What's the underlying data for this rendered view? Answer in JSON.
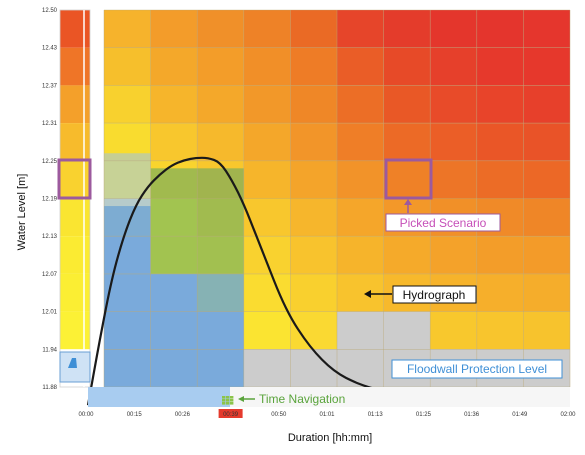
{
  "chart_data": {
    "type": "heatmap",
    "title": "",
    "xlabel": "Duration [hh:mm]",
    "ylabel": "Water Level [m]",
    "x_ticks": [
      "00:00",
      "00:15",
      "00:26",
      "00:39",
      "00:50",
      "01:01",
      "01:13",
      "01:25",
      "01:36",
      "01:49",
      "02:00"
    ],
    "y_ticks": [
      "12.50",
      "12.43",
      "12.37",
      "12.31",
      "12.25",
      "12.19",
      "12.13",
      "12.07",
      "12.01",
      "11.94",
      "11.88"
    ],
    "highlight_tick": "00:39",
    "grid": {
      "rows": 10,
      "cols": 10,
      "colors": [
        [
          "#f6b32c",
          "#f39c2a",
          "#f09029",
          "#ee8227",
          "#ea6a25",
          "#e6452a",
          "#e43c2b",
          "#e4362c",
          "#e4352d",
          "#e5362d"
        ],
        [
          "#f6bf2c",
          "#f4a82a",
          "#f39d29",
          "#f18f28",
          "#ee7c26",
          "#ea5d27",
          "#e74a28",
          "#e6402b",
          "#e6392c",
          "#e6382c"
        ],
        [
          "#f8d12e",
          "#f6b52b",
          "#f4a82a",
          "#f29829",
          "#ef8727",
          "#ec6e26",
          "#e95826",
          "#e84b29",
          "#e8442a",
          "#e7402b"
        ],
        [
          "#f9dc2f",
          "#f8c72d",
          "#f6b92c",
          "#f4a72a",
          "#f29529",
          "#ef7e27",
          "#ec6a26",
          "#eb5e27",
          "#ea5627",
          "#e95328"
        ],
        [
          "#fae531",
          "#f9d42e",
          "#f8c72d",
          "#f6b52b",
          "#f4a42a",
          "#f29329",
          "#ef8127",
          "#ed7527",
          "#ec6c26",
          "#ec6826"
        ],
        [
          "#d6d4a6",
          "#faea31",
          "#f9d82f",
          "#f8c72d",
          "#f6b62c",
          "#f5a62a",
          "#f39829",
          "#f19028",
          "#f08a28",
          "#ef8627"
        ],
        [
          "#cccccc",
          "#fbe932",
          "#fae331",
          "#f9d22f",
          "#f8c32d",
          "#f6b42b",
          "#f5aa2a",
          "#f4a22a",
          "#f39d29",
          "#f39b29"
        ],
        [
          "#cccccc",
          "#cccccc",
          "#fbe932",
          "#fadc30",
          "#f9d02e",
          "#f8c32d",
          "#f7b92c",
          "#f6b32b",
          "#f6af2b",
          "#f5ad2b"
        ],
        [
          "#cccccc",
          "#cccccc",
          "#cccccc",
          "#fbe431",
          "#fad932",
          "#cccccc",
          "#cccccc",
          "#f8c82d",
          "#f8c52d",
          "#f7c32d"
        ],
        [
          "#cccccc",
          "#cccccc",
          "#cccccc",
          "#cccccc",
          "#cccccc",
          "#cccccc",
          "#cccccc",
          "#cccccc",
          "#cccccc",
          "#cccccc"
        ]
      ]
    },
    "sidebar_colors": [
      "#ea5525",
      "#ef7527",
      "#f4a02a",
      "#f7bb2c",
      "#f9d22f",
      "#fae531",
      "#fbeb32",
      "#fbee33",
      "#fcf135",
      "#ffffff"
    ],
    "hydrograph": {
      "x_hours": [
        0.0,
        0.05,
        0.1,
        0.15,
        0.2,
        0.25,
        0.3,
        0.35,
        0.4,
        0.45,
        0.5,
        0.55,
        0.6,
        0.65,
        0.7,
        0.75,
        0.8,
        0.85,
        0.9,
        0.95,
        1.0,
        1.05,
        1.1,
        1.15,
        1.2,
        1.25,
        1.3
      ],
      "y_m": [
        11.85,
        11.96,
        12.06,
        12.13,
        12.18,
        12.21,
        12.23,
        12.245,
        12.253,
        12.257,
        12.257,
        12.25,
        12.22,
        12.18,
        12.13,
        12.08,
        12.03,
        11.99,
        11.96,
        11.935,
        11.915,
        11.9,
        11.89,
        11.882,
        11.876,
        11.872,
        11.87
      ]
    },
    "annotations": {
      "picked_scenario": "Picked Scenario",
      "hydrograph": "Hydrograph",
      "floodwall": "Floodwall Protection Level",
      "time_navigation": "Time Navigation"
    },
    "colors": {
      "picked": "#9c5a9e",
      "picked_text": "#c64fb8",
      "floodwall_text": "#3f8fd6",
      "timenav_text": "#5aa43c",
      "flood_overlay": "#5f9fe0",
      "highlight_tick_bg": "#e53a2d",
      "curve": "#1a1a1a"
    }
  }
}
